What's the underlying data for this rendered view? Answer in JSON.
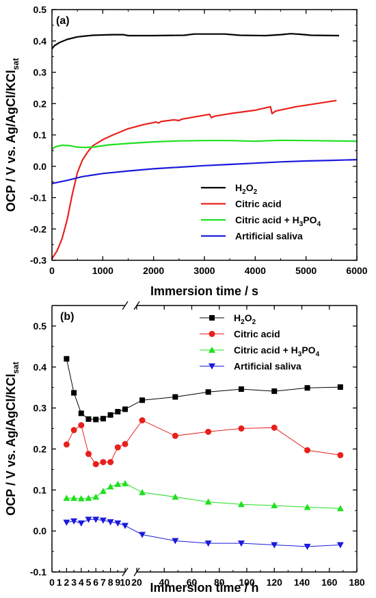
{
  "chart_data": [
    {
      "type": "line",
      "panel_label": "(a)",
      "xlabel": "Immersion time / s",
      "ylabel": "OCP / V vs. Ag/AgCl/KCl",
      "ylabel_sub": "sat",
      "xlim": [
        0,
        6000
      ],
      "ylim": [
        -0.3,
        0.5
      ],
      "xticks": [
        0,
        1000,
        2000,
        3000,
        4000,
        5000,
        6000
      ],
      "yticks": [
        -0.3,
        -0.2,
        -0.1,
        0.0,
        0.1,
        0.2,
        0.3,
        0.4,
        0.5
      ],
      "legend_position": "bottom-right",
      "grid": false,
      "series": [
        {
          "name": "H2O2",
          "name_parts": [
            [
              "H",
              ""
            ],
            [
              "2",
              "sub"
            ],
            [
              "O",
              ""
            ],
            [
              "2",
              "sub"
            ]
          ],
          "color": "#000000",
          "points": [
            [
              0,
              0.375
            ],
            [
              50,
              0.385
            ],
            [
              150,
              0.395
            ],
            [
              300,
              0.405
            ],
            [
              500,
              0.413
            ],
            [
              800,
              0.418
            ],
            [
              1200,
              0.42
            ],
            [
              1400,
              0.42
            ],
            [
              1500,
              0.417
            ],
            [
              2000,
              0.417
            ],
            [
              2600,
              0.418
            ],
            [
              2800,
              0.422
            ],
            [
              3400,
              0.422
            ],
            [
              3700,
              0.418
            ],
            [
              4200,
              0.417
            ],
            [
              4500,
              0.42
            ],
            [
              4700,
              0.423
            ],
            [
              4900,
              0.421
            ],
            [
              5100,
              0.418
            ],
            [
              5650,
              0.417
            ]
          ]
        },
        {
          "name": "Citric acid",
          "name_parts": [
            [
              "Citric acid",
              ""
            ]
          ],
          "color": "#e8201c",
          "points": [
            [
              0,
              -0.295
            ],
            [
              100,
              -0.27
            ],
            [
              200,
              -0.23
            ],
            [
              300,
              -0.17
            ],
            [
              400,
              -0.09
            ],
            [
              500,
              -0.02
            ],
            [
              600,
              0.02
            ],
            [
              700,
              0.045
            ],
            [
              800,
              0.065
            ],
            [
              1000,
              0.085
            ],
            [
              1200,
              0.1
            ],
            [
              1500,
              0.12
            ],
            [
              1800,
              0.133
            ],
            [
              2050,
              0.141
            ],
            [
              2100,
              0.138
            ],
            [
              2150,
              0.143
            ],
            [
              2400,
              0.148
            ],
            [
              2500,
              0.146
            ],
            [
              2550,
              0.15
            ],
            [
              3000,
              0.163
            ],
            [
              3100,
              0.166
            ],
            [
              3140,
              0.155
            ],
            [
              3200,
              0.16
            ],
            [
              3500,
              0.168
            ],
            [
              4000,
              0.179
            ],
            [
              4300,
              0.19
            ],
            [
              4330,
              0.168
            ],
            [
              4400,
              0.176
            ],
            [
              4800,
              0.19
            ],
            [
              5200,
              0.2
            ],
            [
              5600,
              0.21
            ]
          ]
        },
        {
          "name": "Citric acid + H3PO4",
          "name_parts": [
            [
              "Citric acid + H",
              ""
            ],
            [
              "3",
              "sub"
            ],
            [
              "PO",
              ""
            ],
            [
              "4",
              "sub"
            ]
          ],
          "color": "#1fe01f",
          "points": [
            [
              0,
              0.055
            ],
            [
              80,
              0.063
            ],
            [
              200,
              0.067
            ],
            [
              350,
              0.066
            ],
            [
              500,
              0.061
            ],
            [
              650,
              0.06
            ],
            [
              850,
              0.062
            ],
            [
              1100,
              0.068
            ],
            [
              1500,
              0.073
            ],
            [
              2000,
              0.078
            ],
            [
              2500,
              0.081
            ],
            [
              3000,
              0.082
            ],
            [
              3500,
              0.082
            ],
            [
              4000,
              0.08
            ],
            [
              4500,
              0.083
            ],
            [
              5000,
              0.082
            ],
            [
              6000,
              0.08
            ]
          ]
        },
        {
          "name": "Artificial saliva",
          "name_parts": [
            [
              "Artificial saliva",
              ""
            ]
          ],
          "color": "#1a1adc",
          "points": [
            [
              0,
              -0.055
            ],
            [
              300,
              -0.045
            ],
            [
              600,
              -0.033
            ],
            [
              1000,
              -0.023
            ],
            [
              1500,
              -0.015
            ],
            [
              2000,
              -0.008
            ],
            [
              2500,
              -0.003
            ],
            [
              3000,
              0.002
            ],
            [
              3500,
              0.006
            ],
            [
              4000,
              0.01
            ],
            [
              4500,
              0.014
            ],
            [
              5000,
              0.017
            ],
            [
              5500,
              0.019
            ],
            [
              6000,
              0.021
            ]
          ]
        }
      ]
    },
    {
      "type": "line",
      "panel_label": "(b)",
      "xlabel": "Immersion time / h",
      "ylabel": "OCP / V vs. Ag/AgCl/KCl",
      "ylabel_sub": "sat",
      "x_break": [
        10,
        20
      ],
      "xlim_left": [
        0,
        10
      ],
      "xlim_right": [
        20,
        180
      ],
      "ylim": [
        -0.1,
        0.55
      ],
      "xticks_left": [
        0,
        1,
        2,
        3,
        4,
        5,
        6,
        7,
        8,
        9,
        10
      ],
      "xticks_left_labeled": [
        0,
        2,
        4,
        6,
        8,
        10
      ],
      "xticks_right": [
        20,
        40,
        60,
        80,
        100,
        120,
        140,
        160,
        180
      ],
      "yticks": [
        -0.1,
        0.0,
        0.1,
        0.2,
        0.3,
        0.4,
        0.5
      ],
      "legend_position": "top-right",
      "grid": false,
      "x": [
        2,
        3,
        4,
        5,
        6,
        7,
        8,
        9,
        10,
        24,
        48,
        72,
        96,
        120,
        144,
        168
      ],
      "series": [
        {
          "name": "H2O2",
          "name_parts": [
            [
              "H",
              ""
            ],
            [
              "2",
              "sub"
            ],
            [
              "O",
              ""
            ],
            [
              "2",
              "sub"
            ]
          ],
          "color": "#000000",
          "marker": "square",
          "values": [
            0.42,
            0.337,
            0.287,
            0.273,
            0.272,
            0.274,
            0.283,
            0.291,
            0.297,
            0.319,
            0.327,
            0.339,
            0.346,
            0.341,
            0.349,
            0.351
          ]
        },
        {
          "name": "Citric acid",
          "name_parts": [
            [
              "Citric acid",
              ""
            ]
          ],
          "color": "#e8201c",
          "marker": "circle",
          "values": [
            0.211,
            0.246,
            0.258,
            0.188,
            0.163,
            0.168,
            0.168,
            0.204,
            0.212,
            0.27,
            0.232,
            0.242,
            0.25,
            0.252,
            0.197,
            0.185
          ]
        },
        {
          "name": "Citric acid + H3PO4",
          "name_parts": [
            [
              "Citric acid + H",
              ""
            ],
            [
              "3",
              "sub"
            ],
            [
              "PO",
              ""
            ],
            [
              "4",
              "sub"
            ]
          ],
          "color": "#1fe01f",
          "marker": "triangle-up",
          "values": [
            0.08,
            0.08,
            0.079,
            0.08,
            0.083,
            0.097,
            0.108,
            0.114,
            0.116,
            0.094,
            0.083,
            0.071,
            0.065,
            0.062,
            0.058,
            0.055
          ]
        },
        {
          "name": "Artificial saliva",
          "name_parts": [
            [
              "Artificial saliva",
              ""
            ]
          ],
          "color": "#1a1adc",
          "marker": "triangle-down",
          "values": [
            0.021,
            0.024,
            0.019,
            0.028,
            0.028,
            0.026,
            0.022,
            0.019,
            0.013,
            -0.009,
            -0.024,
            -0.03,
            -0.03,
            -0.034,
            -0.038,
            -0.034
          ]
        }
      ]
    }
  ]
}
